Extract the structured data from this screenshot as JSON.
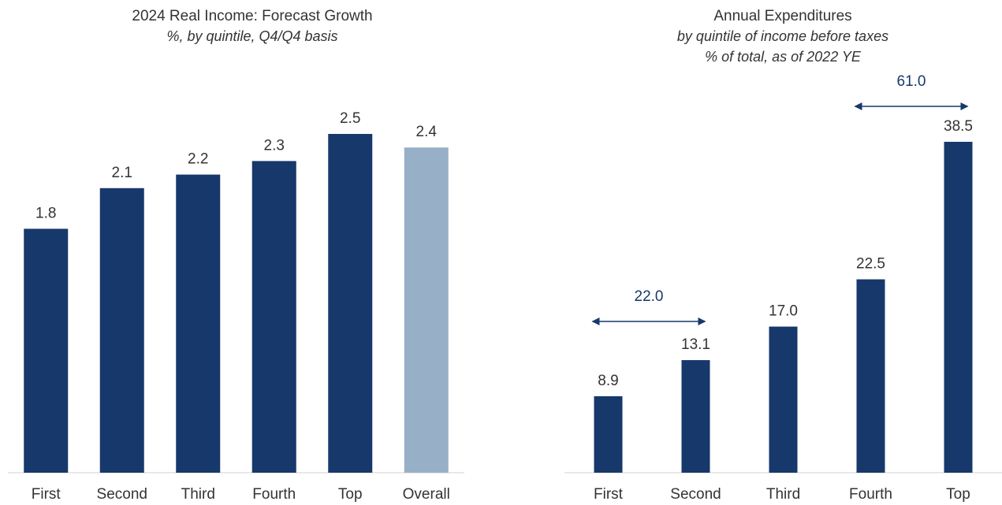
{
  "chart_data": [
    {
      "type": "bar",
      "title": "2024 Real Income: Forecast Growth",
      "subtitle": "%, by quintile, Q4/Q4  basis",
      "categories": [
        "First",
        "Second",
        "Third",
        "Fourth",
        "Top",
        "Overall"
      ],
      "values": [
        1.8,
        2.1,
        2.2,
        2.3,
        2.5,
        2.4
      ],
      "colors": [
        "#17386b",
        "#17386b",
        "#17386b",
        "#17386b",
        "#17386b",
        "#98b0c7"
      ]
    },
    {
      "type": "bar",
      "title": "Annual Expenditures",
      "subtitle": "by quintile of income before taxes",
      "subtitle2": "% of total, as of 2022 YE",
      "categories": [
        "First",
        "Second",
        "Third",
        "Fourth",
        "Top"
      ],
      "values": [
        8.9,
        13.1,
        17.0,
        22.5,
        38.5
      ],
      "value_labels": [
        "8.9",
        "13.1",
        "17.0",
        "22.5",
        "38.5"
      ],
      "colors": [
        "#17386b",
        "#17386b",
        "#17386b",
        "#17386b",
        "#17386b"
      ],
      "annotations": [
        "22.0",
        "61.0"
      ]
    }
  ]
}
